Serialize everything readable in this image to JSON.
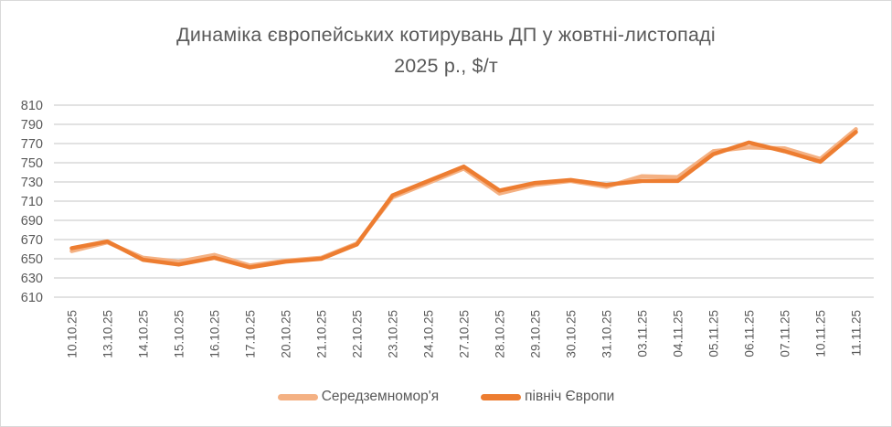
{
  "title": {
    "line1": "Динаміка європейських котирувань ДП у жовтні-листопаді",
    "line2": "2025 р., $/т"
  },
  "colors": {
    "background": "#FFFFFF",
    "frame_border": "#D9D9D9",
    "gridline": "#D9D9D9",
    "axis_text": "#595959",
    "title_text": "#595959",
    "series_light": "#F4B183",
    "series_dark": "#ED7D31"
  },
  "chart_data": {
    "type": "line",
    "title": "Динаміка європейських котирувань ДП у жовтні-листопаді 2025 р., $/т",
    "xlabel": "",
    "ylabel": "",
    "ylim": [
      610,
      810
    ],
    "ytick_step": 20,
    "grid": "horizontal",
    "legend_position": "bottom",
    "x": [
      "10.10.25",
      "13.10.25",
      "14.10.25",
      "15.10.25",
      "16.10.25",
      "17.10.25",
      "20.10.25",
      "21.10.25",
      "22.10.25",
      "23.10.25",
      "24.10.25",
      "27.10.25",
      "28.10.25",
      "29.10.25",
      "30.10.25",
      "31.10.25",
      "03.11.25",
      "04.11.25",
      "05.11.25",
      "06.11.25",
      "07.11.25",
      "10.11.25",
      "11.11.25"
    ],
    "series": [
      {
        "name": "Середземномор'я",
        "color": "#F4B183",
        "values": [
          658,
          667,
          651,
          647,
          654,
          643,
          648,
          651,
          666,
          714,
          729,
          744,
          718,
          727,
          731,
          725,
          736,
          735,
          762,
          766,
          765,
          754,
          785
        ]
      },
      {
        "name": "північ Європи",
        "color": "#ED7D31",
        "values": [
          661,
          668,
          649,
          644,
          651,
          641,
          647,
          650,
          665,
          716,
          731,
          746,
          721,
          729,
          732,
          727,
          731,
          731,
          759,
          771,
          762,
          751,
          782
        ]
      }
    ]
  }
}
